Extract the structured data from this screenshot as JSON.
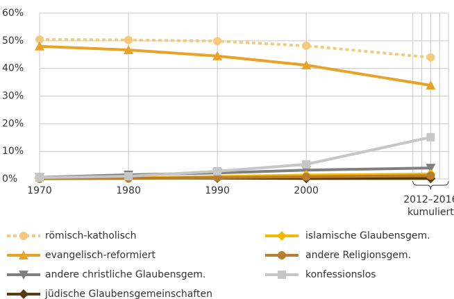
{
  "chart_data": {
    "type": "line",
    "xlim": [
      1970,
      2016
    ],
    "xticks": [
      1970,
      1980,
      1990,
      2000,
      {
        "value": 2014,
        "label": "2012–2016"
      }
    ],
    "x_annotation": "kumuliert",
    "xminor": [
      2012,
      2013,
      2015,
      2016
    ],
    "ylim": [
      0,
      60
    ],
    "yticks": [
      {
        "value": 0,
        "label": "0%"
      },
      {
        "value": 10,
        "label": "10%"
      },
      {
        "value": 20,
        "label": "20%"
      },
      {
        "value": 30,
        "label": "30%"
      },
      {
        "value": 40,
        "label": "40%"
      },
      {
        "value": 50,
        "label": "50%"
      },
      {
        "value": 60,
        "label": "60%"
      }
    ],
    "grid": true,
    "x": [
      1970,
      1980,
      1990,
      2000,
      2014
    ],
    "series": [
      {
        "name": "römisch-katholisch",
        "color": "#f6ca7c",
        "marker": "circle",
        "dashed": true,
        "values": [
          50.5,
          50.3,
          49.9,
          48.2,
          44.0
        ]
      },
      {
        "name": "evangelisch-reformiert",
        "color": "#e9a126",
        "marker": "triangle-up",
        "values": [
          48.0,
          46.7,
          44.5,
          41.2,
          33.9
        ]
      },
      {
        "name": "andere christliche Glaubensgem.",
        "color": "#7f7f7f",
        "marker": "triangle-down",
        "values": [
          0.6,
          1.5,
          2.2,
          3.2,
          4.0
        ]
      },
      {
        "name": "jüdische Glaubensgemeinschaften",
        "color": "#5b3b0e",
        "marker": "diamond",
        "values": [
          0.3,
          0.3,
          0.3,
          0.2,
          0.2
        ]
      },
      {
        "name": "islamische Glaubensgem.",
        "color": "#f7b900",
        "marker": "diamond",
        "values": [
          0.2,
          0.3,
          0.9,
          1.4,
          1.8
        ]
      },
      {
        "name": "andere Religionsgem.",
        "color": "#b97d2e",
        "marker": "circle",
        "values": [
          0.1,
          0.2,
          0.5,
          0.8,
          1.2
        ]
      },
      {
        "name": "konfessionslos",
        "color": "#c6c6c6",
        "marker": "square",
        "values": [
          0.5,
          1.0,
          2.8,
          5.3,
          15.1
        ]
      }
    ]
  }
}
